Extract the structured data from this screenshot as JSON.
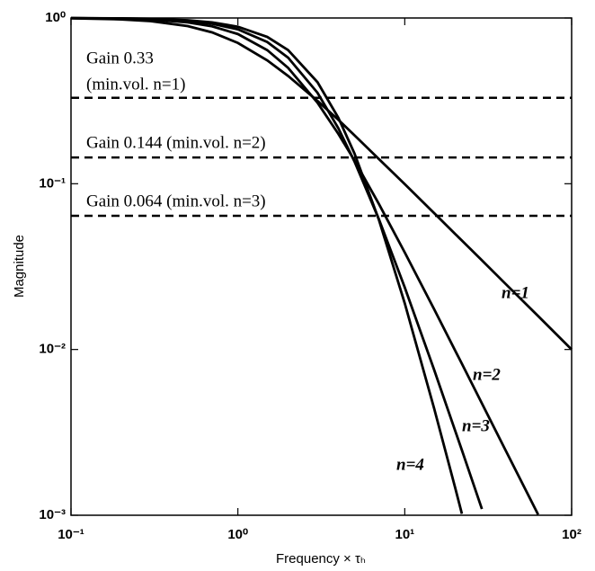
{
  "chart_data": {
    "type": "line",
    "xlabel": "Frequency × τₕ",
    "ylabel": "Magnitude",
    "log_x": true,
    "log_y": true,
    "xlim": [
      0.1,
      100
    ],
    "ylim": [
      0.001,
      1
    ],
    "xticks": [
      {
        "value": 0.1,
        "label": "10⁻¹"
      },
      {
        "value": 1,
        "label": "10⁰"
      },
      {
        "value": 10,
        "label": "10¹"
      },
      {
        "value": 100,
        "label": "10²"
      }
    ],
    "yticks": [
      {
        "value": 0.001,
        "label": "10⁻³"
      },
      {
        "value": 0.01,
        "label": "10⁻²"
      },
      {
        "value": 0.1,
        "label": "10⁻¹"
      },
      {
        "value": 1,
        "label": "10⁰"
      }
    ],
    "x": [
      0.1,
      0.2,
      0.3,
      0.5,
      0.7,
      1,
      1.5,
      2,
      3,
      4,
      5,
      7,
      10,
      15,
      20,
      22,
      29,
      40,
      63,
      100
    ],
    "series": [
      {
        "name": "n=1",
        "color": "#000000",
        "values": [
          0.995,
          0.981,
          0.958,
          0.894,
          0.819,
          0.707,
          0.555,
          0.447,
          0.316,
          0.243,
          0.196,
          0.141,
          0.0995,
          0.0665,
          0.0499,
          0.0454,
          0.0345,
          0.025,
          0.0159,
          0.01
        ]
      },
      {
        "name": "n=2",
        "color": "#000000",
        "values": [
          0.9975,
          0.99,
          0.978,
          0.941,
          0.891,
          0.8,
          0.64,
          0.5,
          0.308,
          0.2,
          0.138,
          0.0755,
          0.0385,
          0.0175,
          0.0099,
          0.0082,
          0.00473,
          0.00249,
          0.00101,
          null
        ]
      },
      {
        "name": "n=3",
        "color": "#000000",
        "values": [
          0.998,
          0.993,
          0.985,
          0.96,
          0.924,
          0.854,
          0.716,
          0.576,
          0.354,
          0.216,
          0.136,
          0.0611,
          0.0237,
          0.00754,
          0.00326,
          0.00247,
          0.00109,
          null,
          null,
          null
        ]
      },
      {
        "name": "n=4",
        "color": "#000000",
        "values": [
          0.9988,
          0.995,
          0.989,
          0.969,
          0.941,
          0.886,
          0.769,
          0.64,
          0.41,
          0.25,
          0.152,
          0.0606,
          0.019,
          0.00441,
          0.00148,
          0.00102,
          null,
          null,
          null,
          null
        ]
      }
    ],
    "reference_lines": [
      {
        "value": 0.33,
        "labels": [
          "Gain 0.33",
          "(min.vol. n=1)"
        ]
      },
      {
        "value": 0.144,
        "labels": [
          "Gain 0.144 (min.vol. n=2)"
        ]
      },
      {
        "value": 0.064,
        "labels": [
          "Gain 0.064 (min.vol. n=3)"
        ]
      }
    ]
  }
}
